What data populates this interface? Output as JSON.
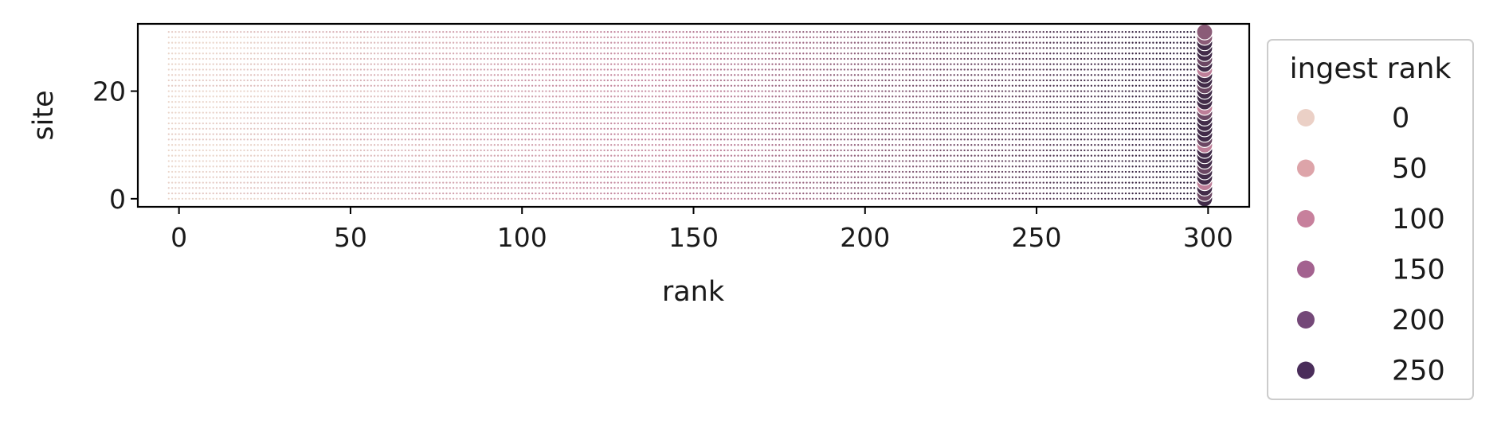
{
  "chart_data": {
    "type": "scatter",
    "xlabel": "rank",
    "ylabel": "site",
    "xlim": [
      -12,
      312
    ],
    "ylim": [
      -1.5,
      32.5
    ],
    "x_ticks": [
      0,
      50,
      100,
      150,
      200,
      250,
      300
    ],
    "y_ticks": [
      0,
      20
    ],
    "grid": false,
    "n_sites": 32,
    "rank_range": [
      -3,
      299
    ],
    "hue_variable": "ingest rank",
    "hue_range": [
      0,
      290
    ],
    "hue_colors": {
      "low": "#ebd7cc",
      "mid": "#c2819b",
      "high": "#2e1e3c"
    },
    "legend": {
      "title": "ingest rank",
      "placement": "outside-right",
      "entries": [
        {
          "label": "0",
          "color": "#ebd0c6"
        },
        {
          "label": "50",
          "color": "#dda4a9"
        },
        {
          "label": "100",
          "color": "#c7809c"
        },
        {
          "label": "150",
          "color": "#a3628f"
        },
        {
          "label": "200",
          "color": "#744878"
        },
        {
          "label": "250",
          "color": "#4a2d5a"
        }
      ]
    }
  }
}
